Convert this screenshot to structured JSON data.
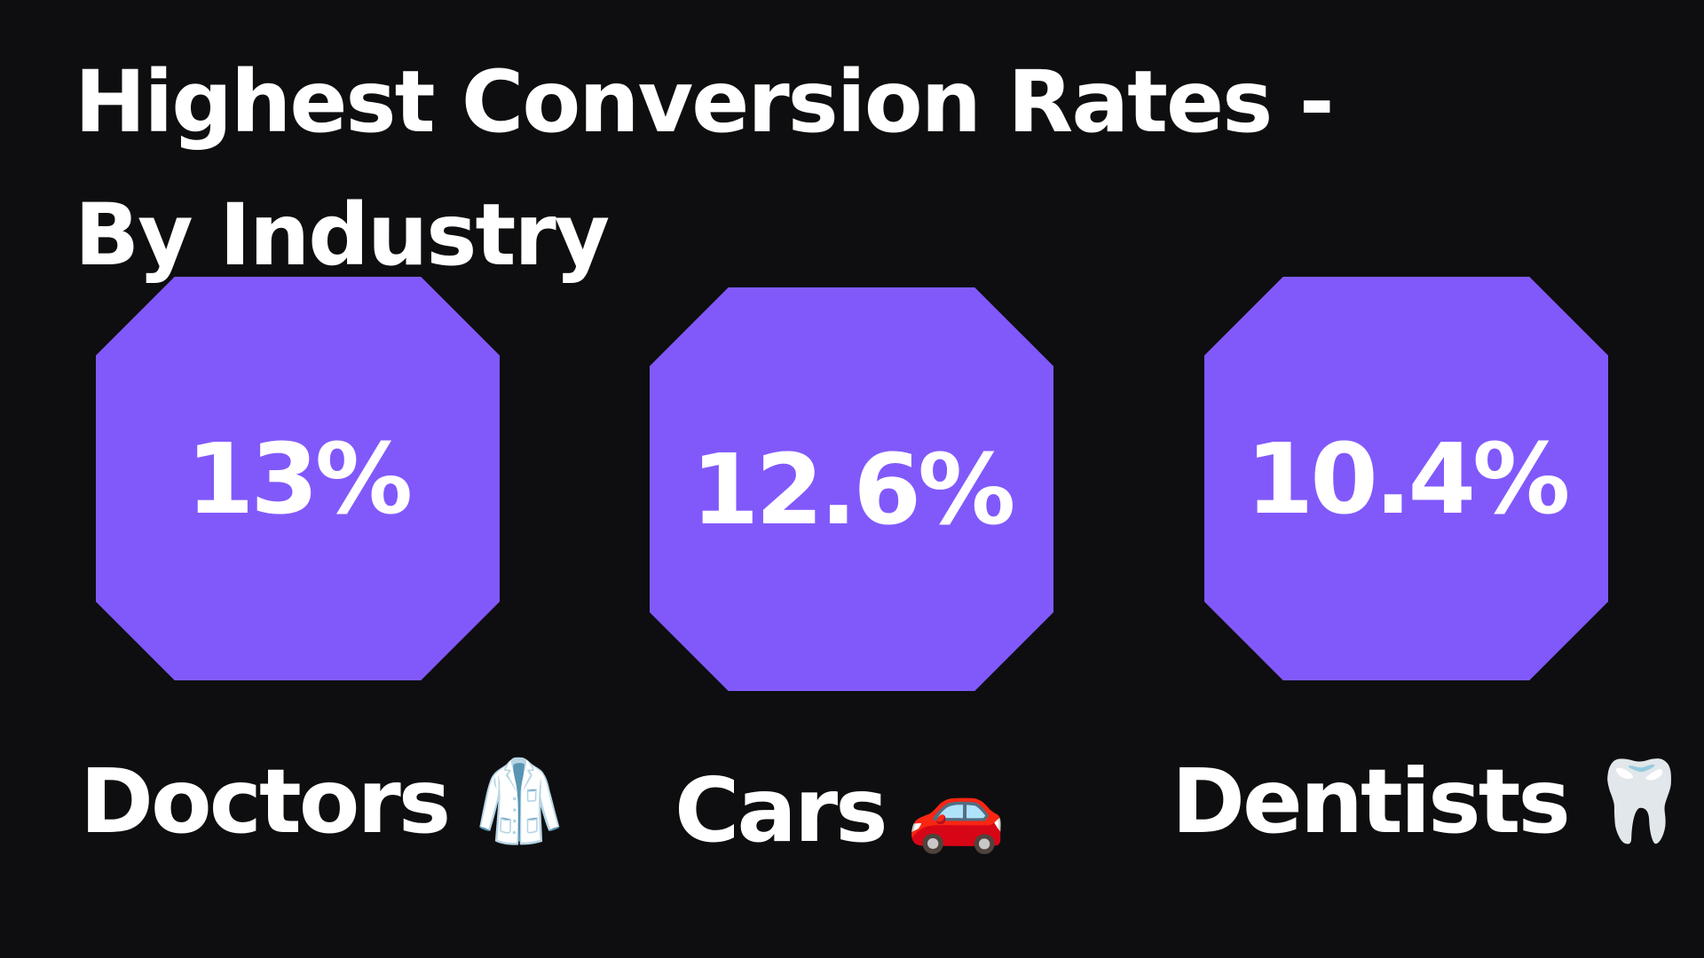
{
  "title_line1": "Highest Conversion Rates -",
  "title_line2": "By Industry",
  "colors": {
    "background": "#0e0e10",
    "card": "#8159fb",
    "text": "#ffffff"
  },
  "industries": [
    {
      "label": "Doctors",
      "value": "13%",
      "icon": "lab-coat-icon",
      "emoji": "🥼"
    },
    {
      "label": "Cars",
      "value": "12.6%",
      "icon": "car-icon",
      "emoji": "🚗"
    },
    {
      "label": "Dentists",
      "value": "10.4%",
      "icon": "tooth-icon",
      "emoji": "🦷"
    }
  ]
}
